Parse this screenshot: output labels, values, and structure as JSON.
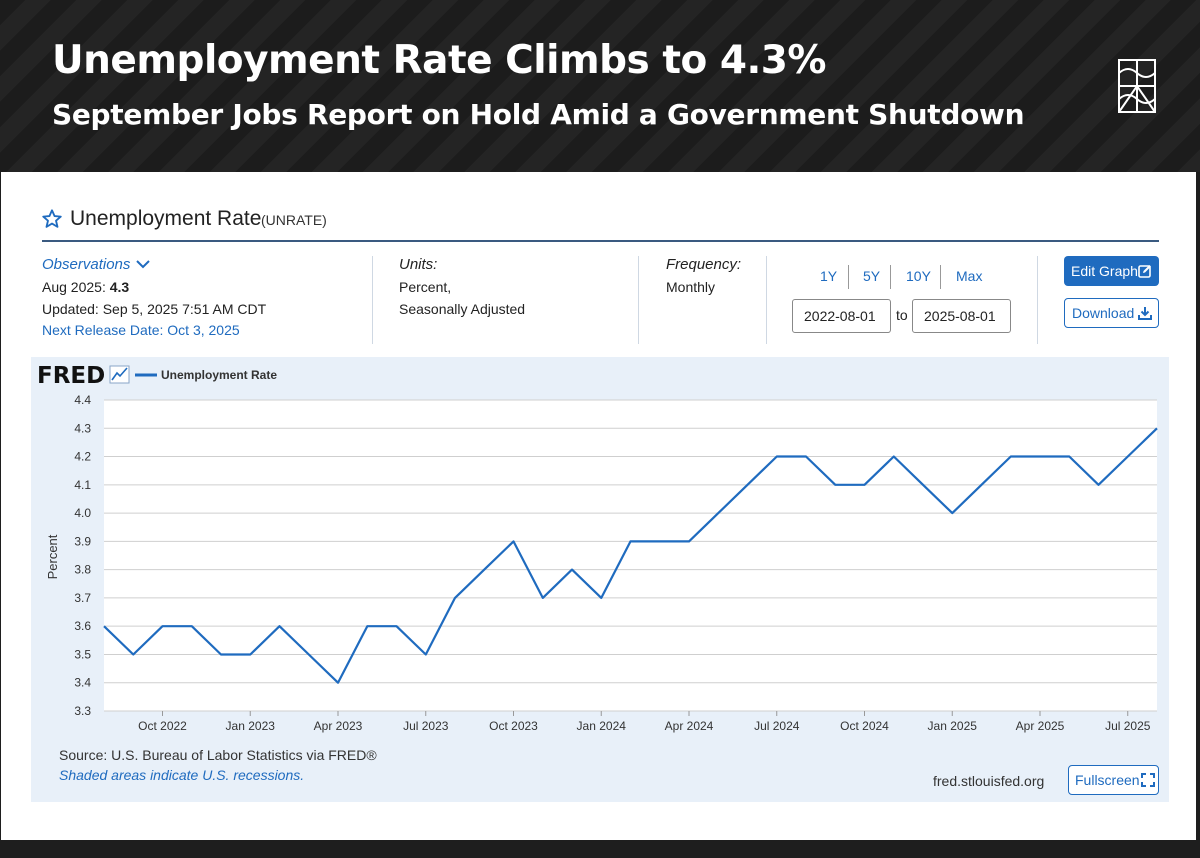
{
  "banner": {
    "headline": "Unemployment Rate Climbs to 4.3%",
    "subhead": "September Jobs Report on Hold Amid a Government Shutdown"
  },
  "series": {
    "title": "Unemployment Rate",
    "code": "(UNRATE)"
  },
  "observations": {
    "link_label": "Observations",
    "latest_label": "Aug 2025: ",
    "latest_value": "4.3",
    "updated": "Updated: Sep 5, 2025 7:51 AM CDT",
    "next_release": "Next Release Date: Oct 3, 2025"
  },
  "units": {
    "label": "Units:",
    "line1": "Percent,",
    "line2": "Seasonally Adjusted"
  },
  "frequency": {
    "label": "Frequency:",
    "value": "Monthly"
  },
  "range": {
    "buttons": [
      "1Y",
      "5Y",
      "10Y",
      "Max"
    ],
    "start": "2022-08-01",
    "to_label": "to",
    "end": "2025-08-01"
  },
  "actions": {
    "edit_label": "Edit Graph",
    "download_label": "Download",
    "fullscreen_label": "Fullscreen"
  },
  "chart_footer": {
    "source": "Source: U.S. Bureau of Labor Statistics via FRED®",
    "recession_note": "Shaded areas indicate U.S. recessions.",
    "site": "fred.stlouisfed.org"
  },
  "colors": {
    "line": "#1f6bbf",
    "accent": "#1f6bbf",
    "panel": "#e8f0f9"
  },
  "chart_data": {
    "type": "line",
    "brand": "FRED",
    "legend": [
      "Unemployment Rate"
    ],
    "ylabel": "Percent",
    "xlabel": "",
    "ylim": [
      3.3,
      4.4
    ],
    "yticks": [
      "4.4",
      "4.3",
      "4.2",
      "4.1",
      "4.0",
      "3.9",
      "3.8",
      "3.7",
      "3.6",
      "3.5",
      "3.4",
      "3.3"
    ],
    "xtick_labels": [
      "Oct 2022",
      "Jan 2023",
      "Apr 2023",
      "Jul 2023",
      "Oct 2023",
      "Jan 2024",
      "Apr 2024",
      "Jul 2024",
      "Oct 2024",
      "Jan 2025",
      "Apr 2025",
      "Jul 2025"
    ],
    "grid": true,
    "series": [
      {
        "name": "Unemployment Rate",
        "x": [
          "2022-08",
          "2022-09",
          "2022-10",
          "2022-11",
          "2022-12",
          "2023-01",
          "2023-02",
          "2023-03",
          "2023-04",
          "2023-05",
          "2023-06",
          "2023-07",
          "2023-08",
          "2023-09",
          "2023-10",
          "2023-11",
          "2023-12",
          "2024-01",
          "2024-02",
          "2024-03",
          "2024-04",
          "2024-05",
          "2024-06",
          "2024-07",
          "2024-08",
          "2024-09",
          "2024-10",
          "2024-11",
          "2024-12",
          "2025-01",
          "2025-02",
          "2025-03",
          "2025-04",
          "2025-05",
          "2025-06",
          "2025-07",
          "2025-08"
        ],
        "values": [
          3.6,
          3.5,
          3.6,
          3.6,
          3.5,
          3.5,
          3.6,
          3.5,
          3.4,
          3.6,
          3.6,
          3.5,
          3.7,
          3.8,
          3.9,
          3.7,
          3.8,
          3.7,
          3.9,
          3.9,
          3.9,
          4.0,
          4.1,
          4.2,
          4.2,
          4.1,
          4.1,
          4.2,
          4.1,
          4.0,
          4.1,
          4.2,
          4.2,
          4.2,
          4.1,
          4.2,
          4.3
        ]
      }
    ]
  }
}
